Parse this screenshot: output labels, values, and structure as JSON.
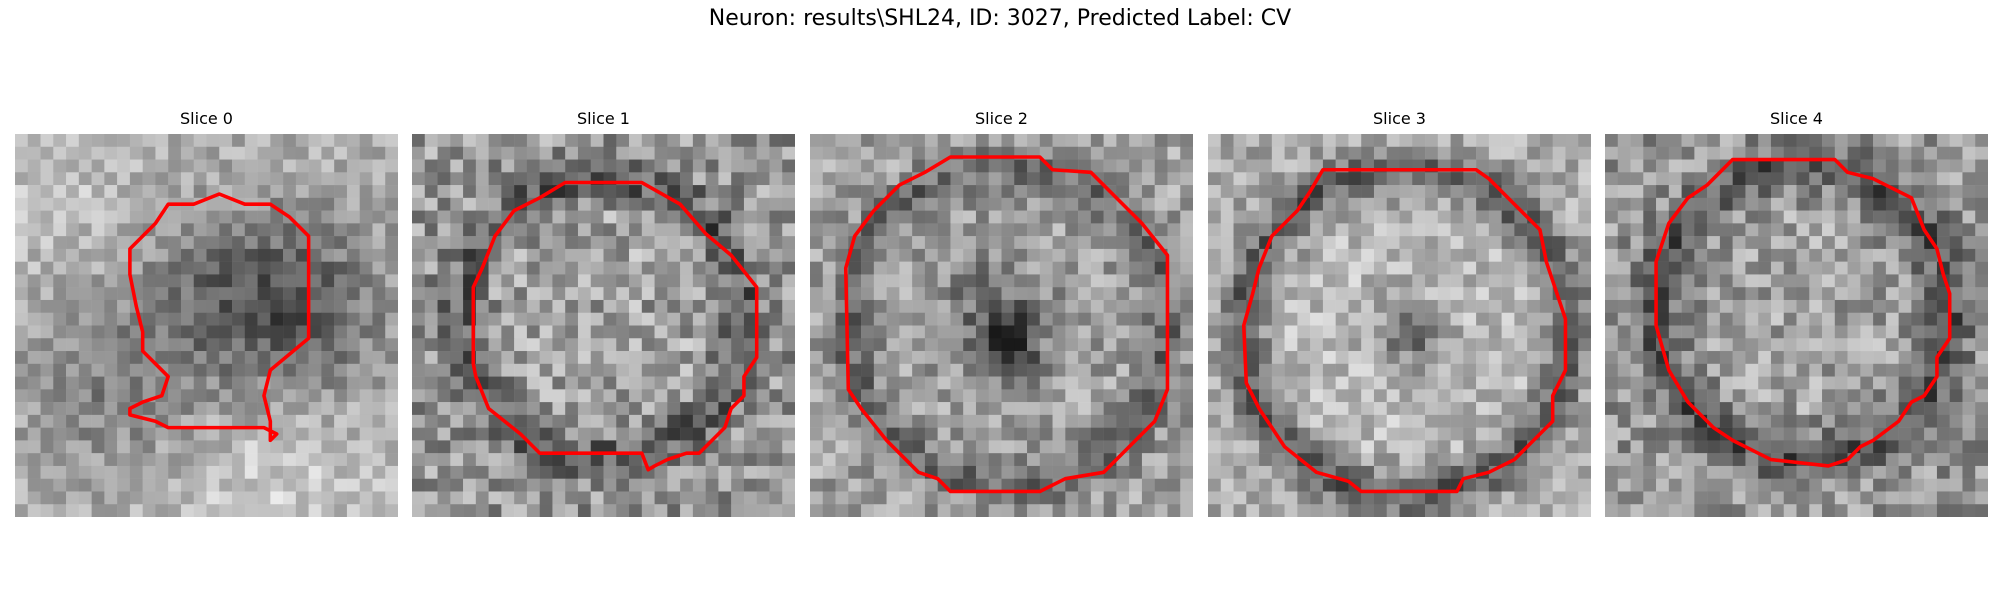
{
  "figure": {
    "title": "Neuron: results\\SHL24, ID: 3027, Predicted Label: CV"
  },
  "colors": {
    "contour": "#ff0000",
    "background": "#ffffff"
  },
  "panels": [
    {
      "title": "Slice 0",
      "pattern": "lumpy-soma"
    },
    {
      "title": "Slice 1",
      "pattern": "ring-sparse-center"
    },
    {
      "title": "Slice 2",
      "pattern": "ring-dark-center"
    },
    {
      "title": "Slice 3",
      "pattern": "ring-bright-interior"
    },
    {
      "title": "Slice 4",
      "pattern": "ring-medium"
    }
  ]
}
